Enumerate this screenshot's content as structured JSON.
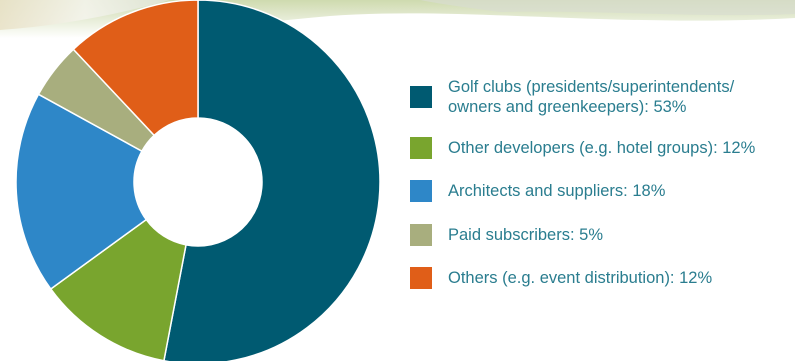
{
  "colors": {
    "golf_clubs": "#005a71",
    "other_developers": "#79a52e",
    "architects": "#2e87c8",
    "paid_subscribers": "#a8ae7e",
    "others": "#e05e18",
    "legend_text": "#2a7d8f"
  },
  "chart_data": {
    "type": "pie",
    "variant": "donut",
    "title": "",
    "slices": [
      {
        "label": "Golf clubs (presidents/superintendents/ owners and greenkeepers): 53%",
        "value": 53,
        "color": "#005a71"
      },
      {
        "label": "Other developers (e.g. hotel groups): 12%",
        "value": 12,
        "color": "#79a52e"
      },
      {
        "label": "Architects and suppliers: 18%",
        "value": 18,
        "color": "#2e87c8"
      },
      {
        "label": "Paid subscribers: 5%",
        "value": 5,
        "color": "#a8ae7e"
      },
      {
        "label": "Others (e.g. event distribution): 12%",
        "value": 12,
        "color": "#e05e18"
      }
    ],
    "legend_placement": "right"
  },
  "legend": {
    "items": [
      {
        "line1": "Golf clubs (presidents/superintendents/",
        "line2": "owners and greenkeepers): 53%"
      },
      {
        "line1": "Other developers (e.g. hotel groups): 12%"
      },
      {
        "line1": "Architects and suppliers: 18%"
      },
      {
        "line1": "Paid subscribers: 5%"
      },
      {
        "line1": "Others (e.g. event distribution): 12%"
      }
    ]
  }
}
